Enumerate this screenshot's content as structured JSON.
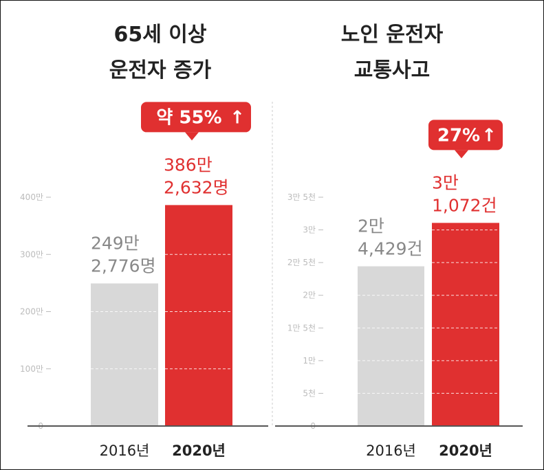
{
  "colors": {
    "prev": "#d8d8d8",
    "curr": "#e03030",
    "text_prev": "#888888",
    "text_curr": "#e03030",
    "axis": "#555555",
    "tick": "#bbbbbb"
  },
  "chart_data": [
    {
      "type": "bar",
      "title_lines": [
        "65세 이상",
        "운전자 증가"
      ],
      "categories": [
        "2016년",
        "2020년"
      ],
      "values": [
        2492776,
        3862632
      ],
      "value_labels": [
        [
          "249만",
          "2,776명"
        ],
        [
          "386만",
          "2,632명"
        ]
      ],
      "ylim": [
        0,
        4000000
      ],
      "yticks": [
        {
          "v": 0,
          "label": "0"
        },
        {
          "v": 1000000,
          "label": "100만"
        },
        {
          "v": 2000000,
          "label": "200만"
        },
        {
          "v": 3000000,
          "label": "300만"
        },
        {
          "v": 4000000,
          "label": "400만"
        }
      ],
      "badge": {
        "text": "약 55%",
        "arrow": "↑"
      }
    },
    {
      "type": "bar",
      "title_lines": [
        "노인 운전자",
        "교통사고"
      ],
      "categories": [
        "2016년",
        "2020년"
      ],
      "values": [
        24429,
        31072
      ],
      "value_labels": [
        [
          "2만",
          "4,429건"
        ],
        [
          "3만",
          "1,072건"
        ]
      ],
      "ylim": [
        0,
        35000
      ],
      "yticks": [
        {
          "v": 0,
          "label": "0"
        },
        {
          "v": 5000,
          "label": "5천"
        },
        {
          "v": 10000,
          "label": "1만"
        },
        {
          "v": 15000,
          "label": "1만 5천"
        },
        {
          "v": 20000,
          "label": "2만"
        },
        {
          "v": 25000,
          "label": "2만 5천"
        },
        {
          "v": 30000,
          "label": "3만"
        },
        {
          "v": 35000,
          "label": "3만 5천"
        }
      ],
      "badge": {
        "text": "27%",
        "arrow": "↑"
      }
    }
  ]
}
